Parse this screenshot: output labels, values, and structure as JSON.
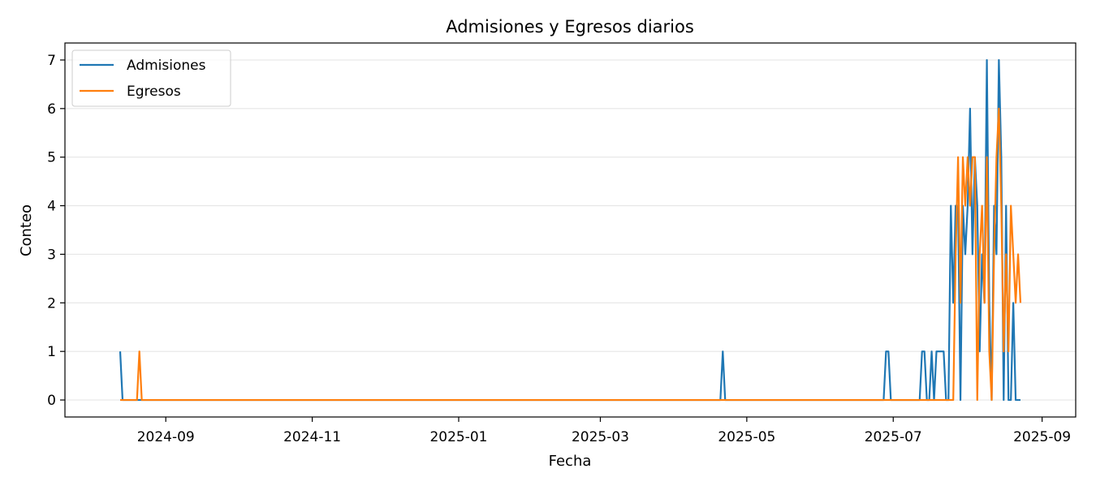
{
  "chart_data": {
    "type": "line",
    "title": "Admisiones y Egresos diarios",
    "xlabel": "Fecha",
    "ylabel": "Conteo",
    "ylim": [
      -0.35,
      7.35
    ],
    "yticks": [
      0,
      1,
      2,
      3,
      4,
      5,
      6,
      7
    ],
    "xlim": [
      "2024-07-21",
      "2025-09-15"
    ],
    "xticks": [
      {
        "date": "2024-09-01",
        "label": "2024-09"
      },
      {
        "date": "2024-11-01",
        "label": "2024-11"
      },
      {
        "date": "2025-01-01",
        "label": "2025-01"
      },
      {
        "date": "2025-03-01",
        "label": "2025-03"
      },
      {
        "date": "2025-05-01",
        "label": "2025-05"
      },
      {
        "date": "2025-07-01",
        "label": "2025-07"
      },
      {
        "date": "2025-09-01",
        "label": "2025-09"
      }
    ],
    "grid": "y",
    "legend_position": "upper-left",
    "colors": {
      "Admisiones": "#1f77b4",
      "Egresos": "#ff7f0e"
    },
    "series": [
      {
        "name": "Admisiones",
        "points": [
          [
            "2024-08-13",
            1
          ],
          [
            "2024-08-14",
            0
          ],
          [
            "2024-08-20",
            0
          ],
          [
            "2024-08-21",
            0
          ],
          [
            "2024-08-22",
            0
          ],
          [
            "2025-04-20",
            0
          ],
          [
            "2025-04-21",
            1
          ],
          [
            "2025-04-22",
            0
          ],
          [
            "2025-06-27",
            0
          ],
          [
            "2025-06-28",
            1
          ],
          [
            "2025-06-29",
            1
          ],
          [
            "2025-06-30",
            0
          ],
          [
            "2025-07-12",
            0
          ],
          [
            "2025-07-13",
            1
          ],
          [
            "2025-07-14",
            1
          ],
          [
            "2025-07-15",
            0
          ],
          [
            "2025-07-16",
            0
          ],
          [
            "2025-07-17",
            1
          ],
          [
            "2025-07-18",
            0
          ],
          [
            "2025-07-19",
            1
          ],
          [
            "2025-07-20",
            1
          ],
          [
            "2025-07-21",
            1
          ],
          [
            "2025-07-22",
            1
          ],
          [
            "2025-07-23",
            0
          ],
          [
            "2025-07-24",
            0
          ],
          [
            "2025-07-25",
            4
          ],
          [
            "2025-07-26",
            2
          ],
          [
            "2025-07-27",
            4
          ],
          [
            "2025-07-28",
            4
          ],
          [
            "2025-07-29",
            0
          ],
          [
            "2025-07-30",
            4
          ],
          [
            "2025-07-31",
            3
          ],
          [
            "2025-08-01",
            4
          ],
          [
            "2025-08-02",
            6
          ],
          [
            "2025-08-03",
            3
          ],
          [
            "2025-08-04",
            5
          ],
          [
            "2025-08-05",
            4
          ],
          [
            "2025-08-06",
            1
          ],
          [
            "2025-08-07",
            3
          ],
          [
            "2025-08-08",
            2
          ],
          [
            "2025-08-09",
            7
          ],
          [
            "2025-08-10",
            2
          ],
          [
            "2025-08-11",
            0
          ],
          [
            "2025-08-12",
            4
          ],
          [
            "2025-08-13",
            3
          ],
          [
            "2025-08-14",
            7
          ],
          [
            "2025-08-15",
            5
          ],
          [
            "2025-08-16",
            0
          ],
          [
            "2025-08-17",
            4
          ],
          [
            "2025-08-18",
            0
          ],
          [
            "2025-08-19",
            0
          ],
          [
            "2025-08-20",
            2
          ],
          [
            "2025-08-21",
            0
          ],
          [
            "2025-08-22",
            0
          ],
          [
            "2025-08-23",
            0
          ]
        ]
      },
      {
        "name": "Egresos",
        "points": [
          [
            "2024-08-13",
            0
          ],
          [
            "2024-08-20",
            0
          ],
          [
            "2024-08-21",
            1
          ],
          [
            "2024-08-22",
            0
          ],
          [
            "2025-07-24",
            0
          ],
          [
            "2025-07-25",
            0
          ],
          [
            "2025-07-26",
            0
          ],
          [
            "2025-07-27",
            3
          ],
          [
            "2025-07-28",
            5
          ],
          [
            "2025-07-29",
            2
          ],
          [
            "2025-07-30",
            5
          ],
          [
            "2025-07-31",
            4
          ],
          [
            "2025-08-01",
            5
          ],
          [
            "2025-08-02",
            4
          ],
          [
            "2025-08-03",
            5
          ],
          [
            "2025-08-04",
            5
          ],
          [
            "2025-08-05",
            0
          ],
          [
            "2025-08-06",
            3
          ],
          [
            "2025-08-07",
            4
          ],
          [
            "2025-08-08",
            2
          ],
          [
            "2025-08-09",
            5
          ],
          [
            "2025-08-10",
            1
          ],
          [
            "2025-08-11",
            0
          ],
          [
            "2025-08-12",
            3
          ],
          [
            "2025-08-13",
            5
          ],
          [
            "2025-08-14",
            6
          ],
          [
            "2025-08-15",
            4
          ],
          [
            "2025-08-16",
            1
          ],
          [
            "2025-08-17",
            3
          ],
          [
            "2025-08-18",
            1
          ],
          [
            "2025-08-19",
            4
          ],
          [
            "2025-08-20",
            3
          ],
          [
            "2025-08-21",
            2
          ],
          [
            "2025-08-22",
            3
          ],
          [
            "2025-08-23",
            2
          ]
        ]
      }
    ]
  }
}
